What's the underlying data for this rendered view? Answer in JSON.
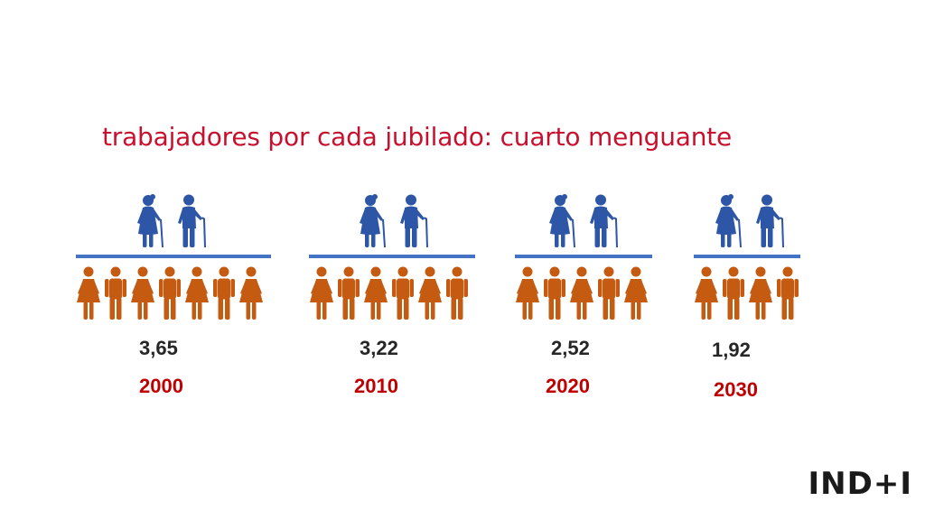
{
  "title": "trabajadores por cada jubilado: cuarto menguante",
  "colors": {
    "title": "#c8102e",
    "retiree": "#2e56a6",
    "worker": "#c55a11",
    "bar": "#4472c4",
    "year": "#c00000"
  },
  "icons": {
    "retiree_female": "elderly-woman-icon",
    "retiree_male": "elderly-man-icon",
    "worker_female": "woman-icon",
    "worker_male": "man-icon"
  },
  "groups": [
    {
      "value": "3,65",
      "year": "2000",
      "retirees": 2,
      "workers": [
        "f",
        "m",
        "f",
        "m",
        "f",
        "m",
        "f"
      ]
    },
    {
      "value": "3,22",
      "year": "2010",
      "retirees": 2,
      "workers": [
        "f",
        "m",
        "f",
        "m",
        "f",
        "m"
      ]
    },
    {
      "value": "2,52",
      "year": "2020",
      "retirees": 2,
      "workers": [
        "f",
        "m",
        "f",
        "m",
        "f"
      ]
    },
    {
      "value": "1,92",
      "year": "2030",
      "retirees": 2,
      "workers": [
        "f",
        "m",
        "f",
        "m"
      ]
    }
  ],
  "logo": "IND+I"
}
